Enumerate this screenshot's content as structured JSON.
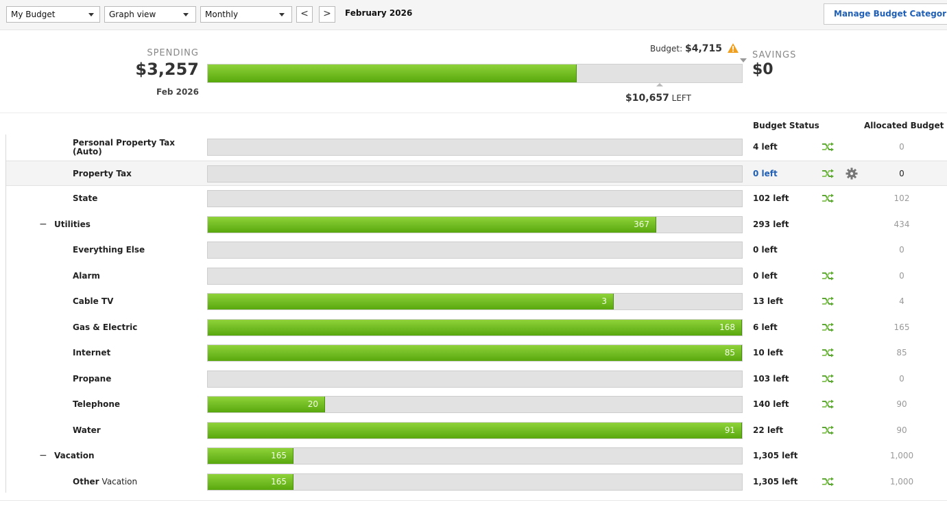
{
  "toolbar": {
    "budget_select": "My Budget",
    "view_select": "Graph view",
    "period_select": "Monthly",
    "prev_label": "<",
    "next_label": ">",
    "month": "February 2026",
    "manage_button": "Manage Budget Categories"
  },
  "summary": {
    "spending_caption": "SPENDING",
    "spending_amount": "$3,257",
    "spending_date": "Feb 2026",
    "budget_prefix": "Budget:",
    "budget_amount": "$4,715",
    "left_amount": "$10,657",
    "left_suffix": "LEFT",
    "savings_caption": "SAVINGS",
    "savings_amount": "$0",
    "spent_fraction": 0.69
  },
  "columns": {
    "status": "Budget Status",
    "allocated": "Allocated Budget"
  },
  "colors": {
    "bar_green": "#6cbd1f",
    "link_blue": "#1f5fb5",
    "warning_orange": "#f0a020"
  },
  "rows": [
    {
      "name": "Personal Property Tax (Auto)",
      "level": 2,
      "fraction": 0,
      "bar_label": "",
      "status": "4 left",
      "status_link": false,
      "rollover_icon": true,
      "gear_icon": false,
      "allocated": "0",
      "highlight": false,
      "group": false
    },
    {
      "name": "Property Tax",
      "level": 2,
      "fraction": 0,
      "bar_label": "",
      "status": "0 left",
      "status_link": true,
      "rollover_icon": true,
      "gear_icon": true,
      "allocated": "0",
      "highlight": true,
      "group": false
    },
    {
      "name": "State",
      "level": 2,
      "fraction": 0,
      "bar_label": "",
      "status": "102 left",
      "status_link": false,
      "rollover_icon": true,
      "gear_icon": false,
      "allocated": "102",
      "highlight": false,
      "group": false
    },
    {
      "name": "Utilities",
      "level": 1,
      "fraction": 0.84,
      "bar_label": "367",
      "status": "293 left",
      "status_link": false,
      "rollover_icon": false,
      "gear_icon": false,
      "allocated": "434",
      "highlight": false,
      "group": true
    },
    {
      "name": "Everything Else",
      "level": 2,
      "fraction": 0,
      "bar_label": "",
      "status": "0 left",
      "status_link": false,
      "rollover_icon": false,
      "gear_icon": false,
      "allocated": "0",
      "highlight": false,
      "group": false
    },
    {
      "name": "Alarm",
      "level": 2,
      "fraction": 0,
      "bar_label": "",
      "status": "0 left",
      "status_link": false,
      "rollover_icon": true,
      "gear_icon": false,
      "allocated": "0",
      "highlight": false,
      "group": false
    },
    {
      "name": "Cable TV",
      "level": 2,
      "fraction": 0.76,
      "bar_label": "3",
      "status": "13 left",
      "status_link": false,
      "rollover_icon": true,
      "gear_icon": false,
      "allocated": "4",
      "highlight": false,
      "group": false
    },
    {
      "name": "Gas & Electric",
      "level": 2,
      "fraction": 1,
      "bar_label": "168",
      "status": "6 left",
      "status_link": false,
      "rollover_icon": true,
      "gear_icon": false,
      "allocated": "165",
      "highlight": false,
      "group": false
    },
    {
      "name": "Internet",
      "level": 2,
      "fraction": 1,
      "bar_label": "85",
      "status": "10 left",
      "status_link": false,
      "rollover_icon": true,
      "gear_icon": false,
      "allocated": "85",
      "highlight": false,
      "group": false
    },
    {
      "name": "Propane",
      "level": 2,
      "fraction": 0,
      "bar_label": "",
      "status": "103 left",
      "status_link": false,
      "rollover_icon": true,
      "gear_icon": false,
      "allocated": "0",
      "highlight": false,
      "group": false
    },
    {
      "name": "Telephone",
      "level": 2,
      "fraction": 0.22,
      "bar_label": "20",
      "status": "140 left",
      "status_link": false,
      "rollover_icon": true,
      "gear_icon": false,
      "allocated": "90",
      "highlight": false,
      "group": false
    },
    {
      "name": "Water",
      "level": 2,
      "fraction": 1,
      "bar_label": "91",
      "status": "22 left",
      "status_link": false,
      "rollover_icon": true,
      "gear_icon": false,
      "allocated": "90",
      "highlight": false,
      "group": false
    },
    {
      "name": "Vacation",
      "level": 1,
      "fraction": 0.16,
      "bar_label": "165",
      "status": "1,305 left",
      "status_link": false,
      "rollover_icon": false,
      "gear_icon": false,
      "allocated": "1,000",
      "highlight": false,
      "group": true
    },
    {
      "name": "Other",
      "name_suffix": "Vacation",
      "level": 2,
      "fraction": 0.16,
      "bar_label": "165",
      "status": "1,305 left",
      "status_link": false,
      "rollover_icon": true,
      "gear_icon": false,
      "allocated": "1,000",
      "highlight": false,
      "group": false
    }
  ]
}
